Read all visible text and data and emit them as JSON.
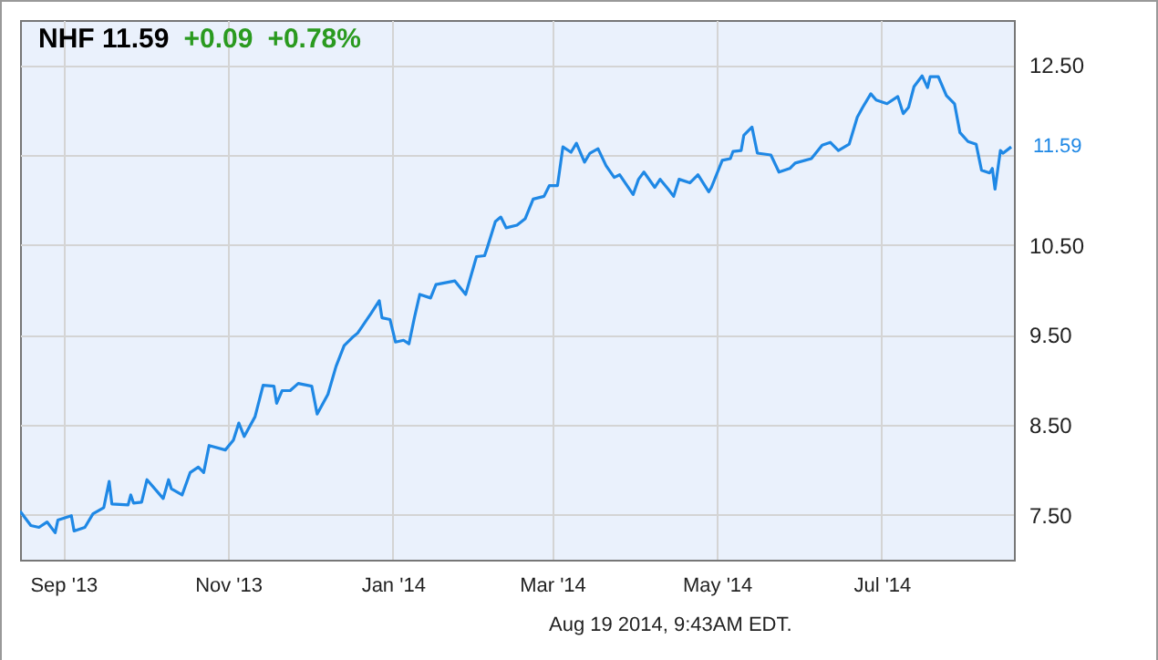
{
  "chart_data": {
    "type": "line",
    "title": "NHF 11.59",
    "annotations": [
      "+0.09",
      "+0.78%",
      "Aug 19 2014, 9:43AM EDT.",
      {
        "text": "11.59",
        "x": "2014-08-18",
        "y": 11.59
      }
    ],
    "x": [
      "2013-08-16",
      "2013-08-20",
      "2013-08-23",
      "2013-08-26",
      "2013-08-29",
      "2013-08-30",
      "2013-09-04",
      "2013-09-05",
      "2013-09-09",
      "2013-09-12",
      "2013-09-16",
      "2013-09-18",
      "2013-09-19",
      "2013-09-25",
      "2013-09-26",
      "2013-09-27",
      "2013-09-30",
      "2013-10-02",
      "2013-10-08",
      "2013-10-10",
      "2013-10-11",
      "2013-10-15",
      "2013-10-18",
      "2013-10-21",
      "2013-10-23",
      "2013-10-25",
      "2013-10-31",
      "2013-11-03",
      "2013-11-05",
      "2013-11-07",
      "2013-11-11",
      "2013-11-14",
      "2013-11-18",
      "2013-11-19",
      "2013-11-21",
      "2013-11-24",
      "2013-11-27",
      "2013-12-02",
      "2013-12-04",
      "2013-12-08",
      "2013-12-11",
      "2013-12-14",
      "2013-12-17",
      "2013-12-19",
      "2013-12-24",
      "2013-12-27",
      "2013-12-28",
      "2013-12-31",
      "2014-01-02",
      "2014-01-05",
      "2014-01-07",
      "2014-01-09",
      "2014-01-11",
      "2014-01-15",
      "2014-01-17",
      "2014-01-24",
      "2014-01-28",
      "2014-02-01",
      "2014-02-04",
      "2014-02-05",
      "2014-02-08",
      "2014-02-10",
      "2014-02-12",
      "2014-02-16",
      "2014-02-19",
      "2014-02-22",
      "2014-02-26",
      "2014-02-28",
      "2014-03-03",
      "2014-03-05",
      "2014-03-08",
      "2014-03-10",
      "2014-03-13",
      "2014-03-15",
      "2014-03-18",
      "2014-03-21",
      "2014-03-24",
      "2014-03-26",
      "2014-03-31",
      "2014-04-02",
      "2014-04-04",
      "2014-04-08",
      "2014-04-10",
      "2014-04-13",
      "2014-04-15",
      "2014-04-17",
      "2014-04-21",
      "2014-04-24",
      "2014-04-28",
      "2014-04-29",
      "2014-05-03",
      "2014-05-06",
      "2014-05-07",
      "2014-05-10",
      "2014-05-11",
      "2014-05-14",
      "2014-05-16",
      "2014-05-21",
      "2014-05-24",
      "2014-05-28",
      "2014-05-30",
      "2014-06-05",
      "2014-06-09",
      "2014-06-12",
      "2014-06-15",
      "2014-06-19",
      "2014-06-22",
      "2014-06-24",
      "2014-06-27",
      "2014-06-29",
      "2014-07-03",
      "2014-07-07",
      "2014-07-09",
      "2014-07-11",
      "2014-07-13",
      "2014-07-16",
      "2014-07-18",
      "2014-07-19",
      "2014-07-22",
      "2014-07-25",
      "2014-07-28",
      "2014-07-30",
      "2014-08-02",
      "2014-08-05",
      "2014-08-07",
      "2014-08-10",
      "2014-08-11",
      "2014-08-12",
      "2014-08-14",
      "2014-08-15",
      "2014-08-18"
    ],
    "series": [
      {
        "color": "#1f88e5",
        "values": [
          7.54,
          7.38,
          7.36,
          7.42,
          7.3,
          7.44,
          7.49,
          7.32,
          7.36,
          7.51,
          7.58,
          7.87,
          7.62,
          7.61,
          7.72,
          7.63,
          7.64,
          7.89,
          7.68,
          7.89,
          7.79,
          7.72,
          7.97,
          8.03,
          7.97,
          8.27,
          8.22,
          8.33,
          8.52,
          8.37,
          8.59,
          8.94,
          8.93,
          8.74,
          8.88,
          8.88,
          8.96,
          8.93,
          8.62,
          8.84,
          9.15,
          9.38,
          9.47,
          9.52,
          9.74,
          9.88,
          9.69,
          9.67,
          9.42,
          9.44,
          9.4,
          9.69,
          9.95,
          9.91,
          10.06,
          10.1,
          9.95,
          10.37,
          10.38,
          10.47,
          10.76,
          10.81,
          10.69,
          10.72,
          10.79,
          11.01,
          11.04,
          11.16,
          11.16,
          11.59,
          11.53,
          11.63,
          11.42,
          11.52,
          11.57,
          11.38,
          11.25,
          11.28,
          11.06,
          11.23,
          11.31,
          11.14,
          11.23,
          11.12,
          11.04,
          11.23,
          11.19,
          11.28,
          11.09,
          11.14,
          11.44,
          11.46,
          11.54,
          11.55,
          11.72,
          11.81,
          11.52,
          11.5,
          11.31,
          11.35,
          11.41,
          11.46,
          11.61,
          11.64,
          11.55,
          11.62,
          11.92,
          12.03,
          12.18,
          12.11,
          12.07,
          12.15,
          11.96,
          12.03,
          12.26,
          12.38,
          12.25,
          12.37,
          12.37,
          12.16,
          12.07,
          11.75,
          11.65,
          11.62,
          11.33,
          11.3,
          11.35,
          11.12,
          11.55,
          11.52,
          11.59
        ]
      }
    ],
    "xlim": [
      "2013-08-16",
      "2014-08-19"
    ],
    "xticks": [
      {
        "value": "2013-09-01",
        "label": "Sep '13"
      },
      {
        "value": "2013-11-01",
        "label": "Nov '13"
      },
      {
        "value": "2014-01-01",
        "label": "Jan '14"
      },
      {
        "value": "2014-03-01",
        "label": "Mar '14"
      },
      {
        "value": "2014-05-01",
        "label": "May '14"
      },
      {
        "value": "2014-07-01",
        "label": "Jul '14"
      }
    ],
    "ylim": [
      7,
      13
    ],
    "yticks": [
      {
        "value": 7.5,
        "label": "7.50"
      },
      {
        "value": 8.5,
        "label": "8.50"
      },
      {
        "value": 9.5,
        "label": "9.50"
      },
      {
        "value": 10.5,
        "label": "10.50"
      },
      {
        "value": 11.5,
        "label": null
      },
      {
        "value": 12.5,
        "label": "12.50"
      }
    ],
    "grid": true
  }
}
